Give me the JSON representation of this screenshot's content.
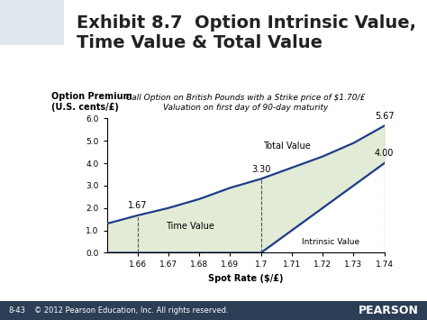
{
  "slide": {
    "title": "Exhibit 8.7  Option Intrinsic Value,\nTime Value & Total Value",
    "footer_page": "8-43",
    "footer_copyright": "© 2012 Pearson Education, Inc. All rights reserved.",
    "footer_brand": "PEARSON"
  },
  "chart_data": {
    "type": "line",
    "title": "Call Option on British Pounds with a Strike price of $1.70/£\nValuation on first day of 90-day maturity",
    "y_label": "Option Premium\n(U.S. cents/£)",
    "x_label": "Spot Rate ($/£)",
    "x": [
      1.65,
      1.66,
      1.67,
      1.68,
      1.69,
      1.7,
      1.71,
      1.72,
      1.73,
      1.74
    ],
    "series": [
      {
        "name": "Total Value",
        "color": "#1f3c88",
        "values": [
          1.3,
          1.67,
          2.0,
          2.4,
          2.9,
          3.3,
          3.8,
          4.3,
          4.9,
          5.67
        ]
      },
      {
        "name": "Intrinsic Value",
        "color": "#1f3c88",
        "values": [
          0.0,
          0.0,
          0.0,
          0.0,
          0.0,
          0.0,
          1.0,
          2.0,
          3.0,
          4.0
        ]
      }
    ],
    "fill": {
      "label": "Time Value",
      "color": "#e2ebd6"
    },
    "annotations": [
      {
        "text": "1.67",
        "x": 1.66,
        "y": 1.67
      },
      {
        "text": "3.30",
        "x": 1.7,
        "y": 3.3
      },
      {
        "text": "5.67",
        "x": 1.74,
        "y": 5.67
      },
      {
        "text": "4.00",
        "x": 1.74,
        "y": 4.0
      }
    ],
    "area_label": {
      "text": "Time Value",
      "x": 1.677,
      "y": 1.2
    },
    "xlim": [
      1.65,
      1.74
    ],
    "xticks": [
      1.66,
      1.67,
      1.68,
      1.69,
      1.7,
      1.71,
      1.72,
      1.73,
      1.74
    ],
    "ylim": [
      0,
      6
    ],
    "yticks": [
      {
        "value": 0,
        "label": "0.0"
      },
      {
        "value": 1,
        "label": "1.0"
      },
      {
        "value": 2,
        "label": "2.0"
      },
      {
        "value": 3,
        "label": "3.0"
      },
      {
        "value": 4,
        "label": "4.0"
      },
      {
        "value": 5,
        "label": "5.0"
      },
      {
        "value": 6,
        "label": "6.0"
      }
    ],
    "grid": false
  }
}
